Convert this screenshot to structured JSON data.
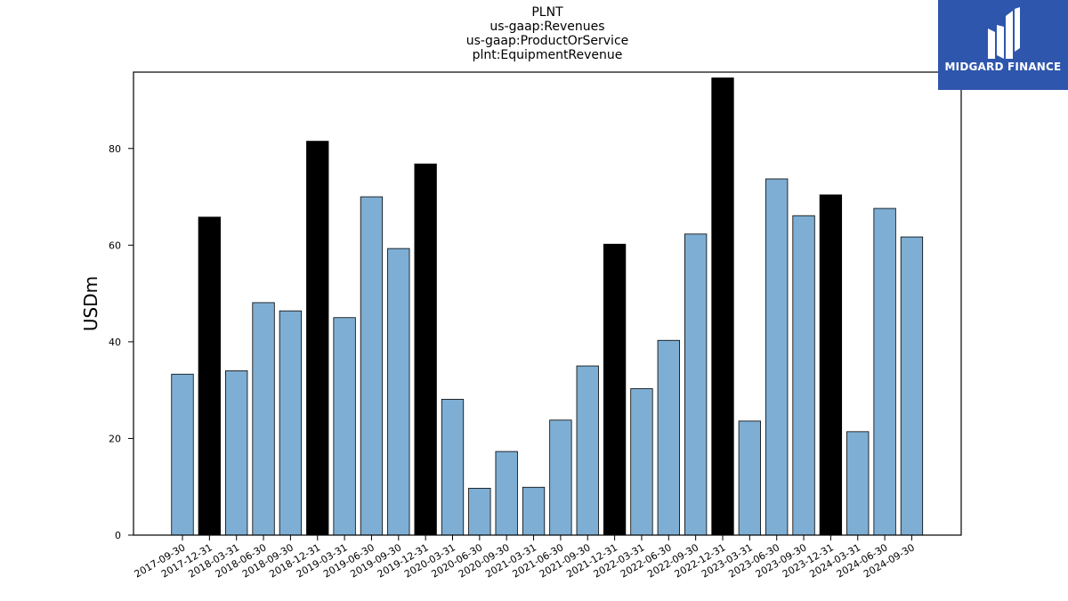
{
  "chart_data": {
    "type": "bar",
    "titles": [
      "PLNT",
      "us-gaap:Revenues",
      "us-gaap:ProductOrService",
      "plnt:EquipmentRevenue"
    ],
    "xlabel": "",
    "ylabel": "USDm",
    "ylim": [
      0,
      95.8
    ],
    "yticks": [
      0,
      20,
      40,
      60,
      80
    ],
    "grid": false,
    "categories": [
      "2017-09-30",
      "2017-12-31",
      "2018-03-31",
      "2018-06-30",
      "2018-09-30",
      "2018-12-31",
      "2019-03-31",
      "2019-06-30",
      "2019-09-30",
      "2019-12-31",
      "2020-03-31",
      "2020-06-30",
      "2020-09-30",
      "2021-03-31",
      "2021-06-30",
      "2021-09-30",
      "2021-12-31",
      "2022-03-31",
      "2022-06-30",
      "2022-09-30",
      "2022-12-31",
      "2023-03-31",
      "2023-06-30",
      "2023-09-30",
      "2023-12-31",
      "2024-03-31",
      "2024-06-30",
      "2024-09-30"
    ],
    "values": [
      33.3,
      65.8,
      34.0,
      48.1,
      46.4,
      81.5,
      45.0,
      70.0,
      59.3,
      76.8,
      28.1,
      9.7,
      17.3,
      9.9,
      23.8,
      35.0,
      60.2,
      30.3,
      40.3,
      62.3,
      94.6,
      23.6,
      73.7,
      66.1,
      70.4,
      21.4,
      67.6,
      61.7
    ],
    "highlight": [
      false,
      true,
      false,
      false,
      false,
      true,
      false,
      false,
      false,
      true,
      false,
      false,
      false,
      false,
      false,
      false,
      true,
      false,
      false,
      false,
      true,
      false,
      false,
      false,
      true,
      false,
      false,
      false
    ],
    "colors": {
      "bar": "#7eaed3",
      "highlight": "#000000",
      "edge": "#000000"
    }
  },
  "logo": {
    "text": "MIDGARD FINANCE",
    "background": "#2f56ad"
  }
}
